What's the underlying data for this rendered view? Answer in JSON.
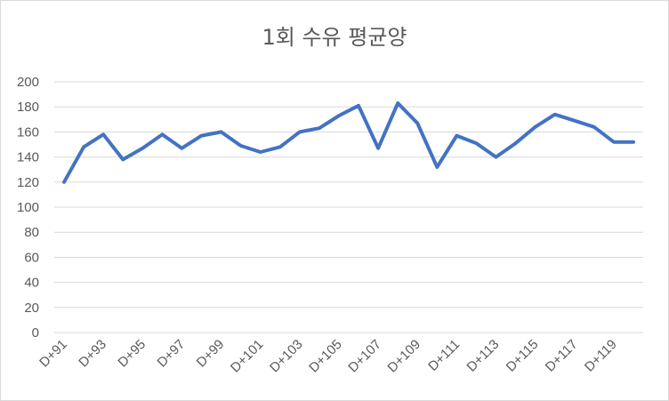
{
  "chart_data": {
    "type": "line",
    "title": "1회 수유 평균양",
    "xlabel": "",
    "ylabel": "",
    "ylim": [
      0,
      200
    ],
    "yticks": [
      0,
      20,
      40,
      60,
      80,
      100,
      120,
      140,
      160,
      180,
      200
    ],
    "grid": true,
    "legend": "none",
    "categories": [
      "D+91",
      "D+92",
      "D+93",
      "D+94",
      "D+95",
      "D+96",
      "D+97",
      "D+98",
      "D+99",
      "D+100",
      "D+101",
      "D+102",
      "D+103",
      "D+104",
      "D+105",
      "D+106",
      "D+107",
      "D+108",
      "D+109",
      "D+110",
      "D+111",
      "D+112",
      "D+113",
      "D+114",
      "D+115",
      "D+116",
      "D+117",
      "D+118",
      "D+119",
      "D+120"
    ],
    "x_tick_labels": [
      "D+91",
      "D+93",
      "D+95",
      "D+97",
      "D+99",
      "D+101",
      "D+103",
      "D+105",
      "D+107",
      "D+109",
      "D+111",
      "D+113",
      "D+115",
      "D+117",
      "D+119"
    ],
    "series": [
      {
        "color": "#4472c4",
        "values": [
          120,
          148,
          158,
          138,
          147,
          158,
          147,
          157,
          160,
          149,
          144,
          148,
          160,
          163,
          173,
          181,
          147,
          183,
          167,
          132,
          157,
          151,
          140,
          151,
          164,
          174,
          169,
          164,
          152,
          152
        ]
      }
    ]
  }
}
